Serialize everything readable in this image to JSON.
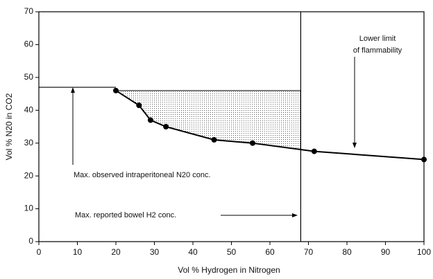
{
  "chart_data": {
    "type": "line",
    "xlabel": "Vol % Hydrogen in Nitrogen",
    "ylabel": "Vol % N20 in CO2",
    "x": [
      20,
      26,
      29,
      33,
      45.5,
      55.5,
      71.5,
      100
    ],
    "values": [
      46,
      41.5,
      37,
      35,
      31,
      30,
      27.5,
      25
    ],
    "color": "#000000",
    "xlim": [
      0,
      100
    ],
    "xticks": [
      0,
      10,
      20,
      30,
      40,
      50,
      60,
      70,
      80,
      90,
      100
    ],
    "ylim": [
      0,
      70
    ],
    "yticks": [
      0,
      10,
      20,
      30,
      40,
      50,
      60,
      70
    ],
    "max_observed_n2o": 47,
    "max_reported_h2": 68,
    "shaded_top": 46,
    "annotations": {
      "flammability": [
        "Lower limit",
        "of flammability"
      ],
      "n2o": "Max. observed intraperitoneal N20 conc.",
      "h2": "Max. reported bowel H2 conc."
    }
  }
}
